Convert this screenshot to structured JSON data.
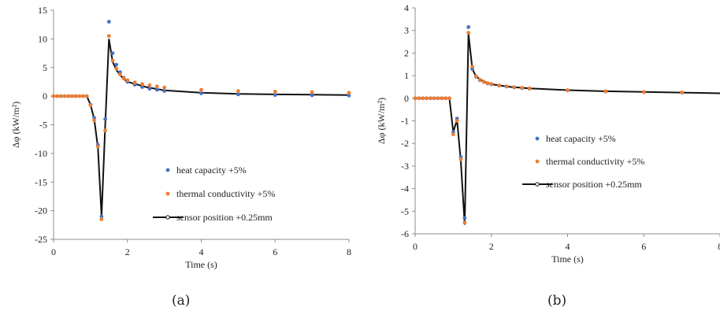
{
  "colors": {
    "heat_capacity": "#4472c4",
    "thermal_conductivity": "#ed7d31",
    "sensor_position": "#111111",
    "axis": "#8c8c8c"
  },
  "chart_data": [
    {
      "type": "scatter",
      "caption": "(a)",
      "xlabel": "Time (s)",
      "ylabel": "Δφ (kW/m²)",
      "xlim": [
        0,
        8
      ],
      "ylim": [
        -25,
        15
      ],
      "x_ticks": [
        "0",
        "2",
        "4",
        "6",
        "8"
      ],
      "y_ticks": [
        "15",
        "10",
        "5",
        "0",
        "-5",
        "-10",
        "-15",
        "-20",
        "-25"
      ],
      "grid": false,
      "legend_position": "right",
      "series": [
        {
          "name": "heat capacity +5%",
          "marker": "dot",
          "points": [
            [
              0,
              0
            ],
            [
              0.1,
              0
            ],
            [
              0.2,
              0
            ],
            [
              0.3,
              0
            ],
            [
              0.4,
              0
            ],
            [
              0.5,
              0
            ],
            [
              0.6,
              0
            ],
            [
              0.7,
              0
            ],
            [
              0.8,
              0
            ],
            [
              0.9,
              0
            ],
            [
              1.0,
              -1.5
            ],
            [
              1.1,
              -3.8
            ],
            [
              1.2,
              -8.5
            ],
            [
              1.3,
              -21
            ],
            [
              1.4,
              -4
            ],
            [
              1.5,
              13
            ],
            [
              1.6,
              7.5
            ],
            [
              1.7,
              5.5
            ],
            [
              1.8,
              4.2
            ],
            [
              1.9,
              3.2
            ],
            [
              2.0,
              2.5
            ],
            [
              2.2,
              2.0
            ],
            [
              2.4,
              1.6
            ],
            [
              2.6,
              1.3
            ],
            [
              2.8,
              1.1
            ],
            [
              3.0,
              0.9
            ],
            [
              4.0,
              0.5
            ],
            [
              5.0,
              0.3
            ],
            [
              6.0,
              0.2
            ],
            [
              7.0,
              0.15
            ],
            [
              8.0,
              0.1
            ]
          ]
        },
        {
          "name": "thermal conductivity +5%",
          "marker": "dot",
          "points": [
            [
              0,
              0
            ],
            [
              0.1,
              0
            ],
            [
              0.2,
              0
            ],
            [
              0.3,
              0
            ],
            [
              0.4,
              0
            ],
            [
              0.5,
              0
            ],
            [
              0.6,
              0
            ],
            [
              0.7,
              0
            ],
            [
              0.8,
              0
            ],
            [
              0.9,
              0
            ],
            [
              1.0,
              -1.6
            ],
            [
              1.1,
              -4.2
            ],
            [
              1.2,
              -8.8
            ],
            [
              1.3,
              -21.5
            ],
            [
              1.4,
              -6
            ],
            [
              1.5,
              10.5
            ],
            [
              1.6,
              6.2
            ],
            [
              1.7,
              4.8
            ],
            [
              1.8,
              3.8
            ],
            [
              1.9,
              3.1
            ],
            [
              2.0,
              2.8
            ],
            [
              2.2,
              2.4
            ],
            [
              2.4,
              2.1
            ],
            [
              2.6,
              1.9
            ],
            [
              2.8,
              1.7
            ],
            [
              3.0,
              1.5
            ],
            [
              4.0,
              1.1
            ],
            [
              5.0,
              0.9
            ],
            [
              6.0,
              0.8
            ],
            [
              7.0,
              0.7
            ],
            [
              8.0,
              0.6
            ]
          ]
        },
        {
          "name": "sensor position +0.25mm",
          "marker": "line",
          "points": [
            [
              0,
              0
            ],
            [
              0.9,
              0
            ],
            [
              1.0,
              -1.5
            ],
            [
              1.1,
              -4
            ],
            [
              1.2,
              -9
            ],
            [
              1.3,
              -21
            ],
            [
              1.4,
              -5
            ],
            [
              1.5,
              10
            ],
            [
              1.6,
              6
            ],
            [
              1.7,
              4.6
            ],
            [
              1.8,
              3.7
            ],
            [
              1.9,
              3.0
            ],
            [
              2.0,
              2.5
            ],
            [
              2.5,
              1.6
            ],
            [
              3.0,
              1.0
            ],
            [
              4.0,
              0.6
            ],
            [
              5.0,
              0.4
            ],
            [
              6.0,
              0.3
            ],
            [
              7.0,
              0.25
            ],
            [
              8.0,
              0.2
            ]
          ]
        }
      ]
    },
    {
      "type": "scatter",
      "caption": "(b)",
      "xlabel": "Time (s)",
      "ylabel": "Δφ (kW/m²)",
      "xlim": [
        0,
        8
      ],
      "ylim": [
        -6,
        4
      ],
      "x_ticks": [
        "0",
        "2",
        "4",
        "6",
        "8"
      ],
      "y_ticks": [
        "4",
        "3",
        "2",
        "1",
        "0",
        "-1",
        "-2",
        "-3",
        "-4",
        "-5",
        "-6"
      ],
      "grid": false,
      "legend_position": "right",
      "series": [
        {
          "name": "heat capacity +5%",
          "marker": "dot",
          "points": [
            [
              0,
              0
            ],
            [
              0.1,
              0
            ],
            [
              0.2,
              0
            ],
            [
              0.3,
              0
            ],
            [
              0.4,
              0
            ],
            [
              0.5,
              0
            ],
            [
              0.6,
              0
            ],
            [
              0.7,
              0
            ],
            [
              0.8,
              0
            ],
            [
              0.9,
              0
            ],
            [
              1.0,
              -1.5
            ],
            [
              1.1,
              -0.9
            ],
            [
              1.2,
              -2.6
            ],
            [
              1.3,
              -5.3
            ],
            [
              1.4,
              3.15
            ],
            [
              1.5,
              1.3
            ],
            [
              1.6,
              0.95
            ],
            [
              1.7,
              0.8
            ],
            [
              1.8,
              0.72
            ],
            [
              1.9,
              0.66
            ],
            [
              2.0,
              0.62
            ],
            [
              2.2,
              0.56
            ],
            [
              2.4,
              0.52
            ],
            [
              2.6,
              0.48
            ],
            [
              2.8,
              0.45
            ],
            [
              3.0,
              0.43
            ],
            [
              4.0,
              0.35
            ],
            [
              5.0,
              0.3
            ],
            [
              6.0,
              0.27
            ],
            [
              7.0,
              0.25
            ]
          ]
        },
        {
          "name": "thermal conductivity +5%",
          "marker": "dot",
          "points": [
            [
              0,
              0
            ],
            [
              0.1,
              0
            ],
            [
              0.2,
              0
            ],
            [
              0.3,
              0
            ],
            [
              0.4,
              0
            ],
            [
              0.5,
              0
            ],
            [
              0.6,
              0
            ],
            [
              0.7,
              0
            ],
            [
              0.8,
              0
            ],
            [
              0.9,
              0
            ],
            [
              1.0,
              -1.6
            ],
            [
              1.1,
              -1.0
            ],
            [
              1.2,
              -2.7
            ],
            [
              1.3,
              -5.5
            ],
            [
              1.4,
              2.9
            ],
            [
              1.5,
              1.4
            ],
            [
              1.6,
              0.97
            ],
            [
              1.7,
              0.82
            ],
            [
              1.8,
              0.73
            ],
            [
              1.9,
              0.67
            ],
            [
              2.0,
              0.63
            ],
            [
              2.2,
              0.57
            ],
            [
              2.4,
              0.53
            ],
            [
              2.6,
              0.49
            ],
            [
              2.8,
              0.46
            ],
            [
              3.0,
              0.44
            ],
            [
              4.0,
              0.36
            ],
            [
              5.0,
              0.31
            ],
            [
              6.0,
              0.28
            ],
            [
              7.0,
              0.26
            ]
          ]
        },
        {
          "name": "sensor position +0.25mm",
          "marker": "line",
          "points": [
            [
              0,
              0
            ],
            [
              0.9,
              0
            ],
            [
              1.0,
              -1.5
            ],
            [
              1.1,
              -0.95
            ],
            [
              1.2,
              -2.8
            ],
            [
              1.3,
              -5.6
            ],
            [
              1.4,
              2.85
            ],
            [
              1.5,
              1.3
            ],
            [
              1.6,
              0.95
            ],
            [
              1.8,
              0.75
            ],
            [
              2.0,
              0.62
            ],
            [
              2.5,
              0.5
            ],
            [
              3.0,
              0.44
            ],
            [
              4.0,
              0.36
            ],
            [
              5.0,
              0.31
            ],
            [
              6.0,
              0.28
            ],
            [
              7.0,
              0.25
            ],
            [
              8.0,
              0.22
            ]
          ]
        }
      ]
    }
  ]
}
